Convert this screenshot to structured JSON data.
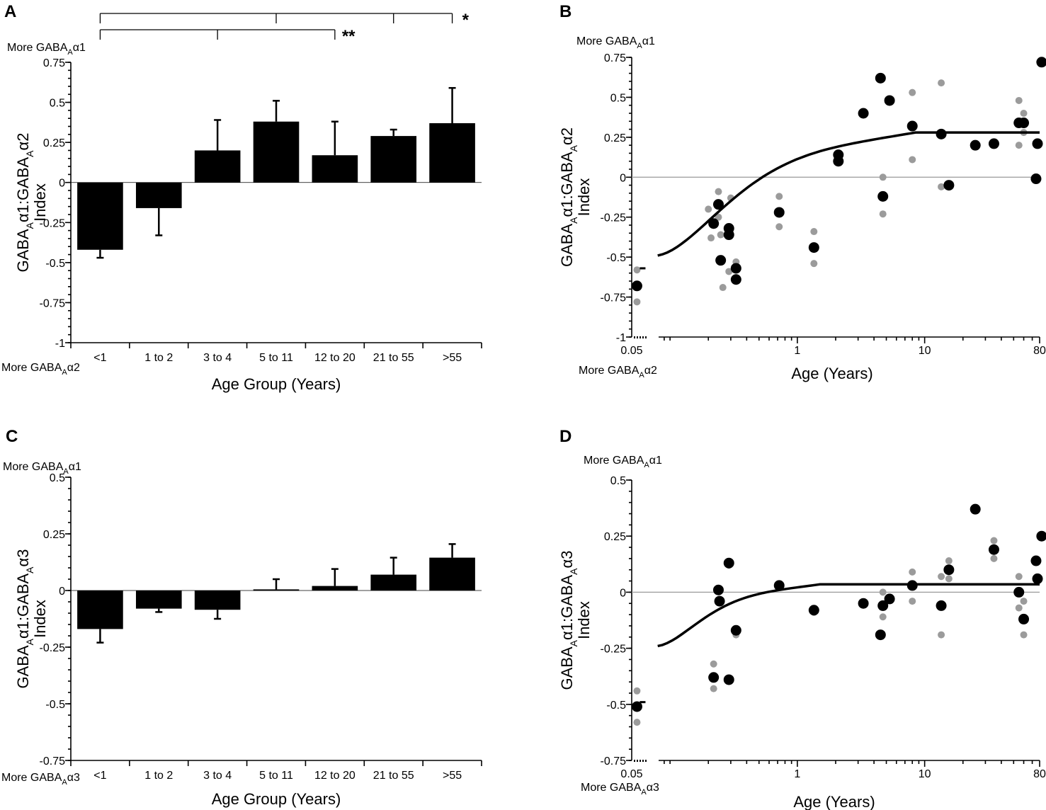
{
  "chart_data": [
    {
      "panel": "A",
      "type": "bar",
      "xlabel": "Age Group (Years)",
      "ylabel_parts": {
        "pre": "GABA",
        "sub1": "A",
        "mid": "α1:GABA",
        "sub2": "A",
        "post": "α2",
        "index": "Index"
      },
      "top_note": {
        "pre": "More GABA",
        "sub": "A",
        "post": "α1"
      },
      "bottom_note": {
        "pre": "More GABA",
        "sub": "A",
        "post": "α2"
      },
      "categories": [
        "<1",
        "1 to 2",
        "3 to 4",
        "5 to 11",
        "12 to 20",
        "21 to 55",
        ">55"
      ],
      "values": [
        -0.42,
        -0.16,
        0.2,
        0.38,
        0.17,
        0.29,
        0.37
      ],
      "errors": [
        0.05,
        0.17,
        0.19,
        0.13,
        0.21,
        0.04,
        0.22
      ],
      "ylim": [
        -1,
        0.75
      ],
      "yticks": [
        0.75,
        0.5,
        0.25,
        0,
        -0.25,
        -0.5,
        -0.75,
        -1
      ],
      "ytick_labels": [
        "0.75",
        "0.5",
        "0.25",
        "0",
        "-0.25",
        "-0.5",
        "-0.75",
        "-1"
      ],
      "significance": [
        {
          "label": "*",
          "from": 0,
          "to": 6,
          "ticks": [
            3,
            5
          ]
        },
        {
          "label": "**",
          "from": 0,
          "to": 4,
          "ticks": [
            2
          ]
        }
      ]
    },
    {
      "panel": "B",
      "type": "scatter",
      "xlabel": "Age (Years)",
      "ylabel_parts": {
        "pre": "GABA",
        "sub1": "A",
        "mid": "α1:GABA",
        "sub2": "A",
        "post": "α2",
        "index": "Index"
      },
      "top_note": {
        "pre": "More GABA",
        "sub": "A",
        "post": "α1"
      },
      "bottom_note": {
        "pre": "More GABA",
        "sub": "A",
        "post": "α2"
      },
      "xscale": "log",
      "xlim": [
        0.05,
        80
      ],
      "xtick_labels": [
        "0.05",
        "1",
        "10",
        "80"
      ],
      "xtick_values": [
        0.05,
        1,
        10,
        80
      ],
      "ylim": [
        -1,
        0.75
      ],
      "yticks": [
        0.75,
        0.5,
        0.25,
        0,
        -0.25,
        -0.5,
        -0.75,
        -1
      ],
      "ytick_labels": [
        "0.75",
        "0.5",
        "0.25",
        "0",
        "-0.25",
        "-0.5",
        "-0.75",
        "-1"
      ],
      "means": [
        [
          0.055,
          -0.68
        ],
        [
          0.22,
          -0.29
        ],
        [
          0.24,
          -0.17
        ],
        [
          0.25,
          -0.52
        ],
        [
          0.29,
          -0.32
        ],
        [
          0.29,
          -0.36
        ],
        [
          0.33,
          -0.57
        ],
        [
          0.33,
          -0.64
        ],
        [
          0.72,
          -0.22
        ],
        [
          1.35,
          -0.44
        ],
        [
          2.1,
          0.14
        ],
        [
          2.1,
          0.1
        ],
        [
          3.3,
          0.4
        ],
        [
          4.5,
          0.62
        ],
        [
          4.7,
          -0.12
        ],
        [
          5.3,
          0.48
        ],
        [
          8,
          0.32
        ],
        [
          13.5,
          0.27
        ],
        [
          15.5,
          -0.05
        ],
        [
          25,
          0.2
        ],
        [
          35,
          0.21
        ],
        [
          55,
          0.34
        ],
        [
          60,
          0.34
        ],
        [
          75,
          -0.01
        ],
        [
          77,
          0.21
        ],
        [
          83,
          0.72
        ]
      ],
      "replicates": [
        [
          0.055,
          -0.58
        ],
        [
          0.055,
          -0.78
        ],
        [
          0.2,
          -0.2
        ],
        [
          0.21,
          -0.38
        ],
        [
          0.24,
          -0.09
        ],
        [
          0.24,
          -0.25
        ],
        [
          0.25,
          -0.36
        ],
        [
          0.26,
          -0.69
        ],
        [
          0.29,
          -0.59
        ],
        [
          0.3,
          -0.13
        ],
        [
          0.33,
          -0.53
        ],
        [
          0.72,
          -0.12
        ],
        [
          0.72,
          -0.31
        ],
        [
          1.35,
          -0.34
        ],
        [
          1.35,
          -0.54
        ],
        [
          4.7,
          0.0
        ],
        [
          4.7,
          -0.23
        ],
        [
          8,
          0.53
        ],
        [
          8,
          0.11
        ],
        [
          13.5,
          0.59
        ],
        [
          13.5,
          -0.06
        ],
        [
          55,
          0.48
        ],
        [
          55,
          0.2
        ],
        [
          60,
          0.4
        ],
        [
          60,
          0.28
        ]
      ],
      "fit_curve": {
        "x_start": 0.08,
        "y_start": -0.49,
        "plateau": 0.28,
        "x_plateau": 8.5
      },
      "break_marker": {
        "x": 0.055,
        "y": -0.57
      }
    },
    {
      "panel": "C",
      "type": "bar",
      "xlabel": "Age Group (Years)",
      "ylabel_parts": {
        "pre": "GABA",
        "sub1": "A",
        "mid": "α1:GABA",
        "sub2": "A",
        "post": "α3",
        "index": "Index"
      },
      "top_note": {
        "pre": "More GABA",
        "sub": "A",
        "post": "α1"
      },
      "bottom_note": {
        "pre": "More GABA",
        "sub": "A",
        "post": "α3"
      },
      "categories": [
        "<1",
        "1 to 2",
        "3 to 4",
        "5 to 11",
        "12 to 20",
        "21 to 55",
        ">55"
      ],
      "values": [
        -0.17,
        -0.08,
        -0.085,
        0.005,
        0.02,
        0.07,
        0.145
      ],
      "errors": [
        0.06,
        0.015,
        0.04,
        0.045,
        0.075,
        0.075,
        0.06
      ],
      "ylim": [
        -0.75,
        0.5
      ],
      "yticks": [
        0.5,
        0.25,
        0,
        -0.25,
        -0.5,
        -0.75
      ],
      "ytick_labels": [
        "0.5",
        "0.25",
        "0",
        "-0.25",
        "-0.5",
        "-0.75"
      ]
    },
    {
      "panel": "D",
      "type": "scatter",
      "xlabel": "Age (Years)",
      "ylabel_parts": {
        "pre": "GABA",
        "sub1": "A",
        "mid": "α1:GABA",
        "sub2": "A",
        "post": "α3",
        "index": "Index"
      },
      "top_note": {
        "pre": "More GABA",
        "sub": "A",
        "post": "α1"
      },
      "bottom_note": {
        "pre": "More GABA",
        "sub": "A",
        "post": "α3"
      },
      "xscale": "log",
      "xlim": [
        0.05,
        80
      ],
      "xtick_labels": [
        "0.05",
        "1",
        "10",
        "80"
      ],
      "xtick_values": [
        0.05,
        1,
        10,
        80
      ],
      "ylim": [
        -0.75,
        0.5
      ],
      "yticks": [
        0.5,
        0.25,
        0,
        -0.25,
        -0.5,
        -0.75
      ],
      "ytick_labels": [
        "0.5",
        "0.25",
        "0",
        "-0.25",
        "-0.5",
        "-0.75"
      ],
      "means": [
        [
          0.055,
          -0.51
        ],
        [
          0.22,
          -0.38
        ],
        [
          0.24,
          0.01
        ],
        [
          0.245,
          -0.04
        ],
        [
          0.29,
          -0.39
        ],
        [
          0.29,
          0.13
        ],
        [
          0.33,
          -0.17
        ],
        [
          0.72,
          0.03
        ],
        [
          1.35,
          -0.08
        ],
        [
          3.3,
          -0.05
        ],
        [
          4.5,
          -0.19
        ],
        [
          4.7,
          -0.06
        ],
        [
          5.3,
          -0.03
        ],
        [
          8,
          0.03
        ],
        [
          13.5,
          -0.06
        ],
        [
          15.5,
          0.1
        ],
        [
          25,
          0.37
        ],
        [
          35,
          0.19
        ],
        [
          55,
          0.0
        ],
        [
          60,
          -0.12
        ],
        [
          75,
          0.14
        ],
        [
          77,
          0.06
        ],
        [
          83,
          0.25
        ]
      ],
      "replicates": [
        [
          0.055,
          -0.44
        ],
        [
          0.055,
          -0.58
        ],
        [
          0.22,
          -0.32
        ],
        [
          0.22,
          -0.43
        ],
        [
          0.29,
          0.12
        ],
        [
          0.33,
          -0.19
        ],
        [
          1.35,
          -0.09
        ],
        [
          4.7,
          0.0
        ],
        [
          4.7,
          -0.11
        ],
        [
          8,
          0.09
        ],
        [
          8,
          -0.04
        ],
        [
          13.5,
          0.07
        ],
        [
          13.5,
          -0.19
        ],
        [
          15.5,
          0.14
        ],
        [
          15.5,
          0.06
        ],
        [
          35,
          0.23
        ],
        [
          35,
          0.15
        ],
        [
          55,
          0.07
        ],
        [
          55,
          -0.07
        ],
        [
          60,
          -0.04
        ],
        [
          60,
          -0.19
        ]
      ],
      "fit_curve": {
        "x_start": 0.08,
        "y_start": -0.24,
        "plateau": 0.035,
        "x_plateau": 1.5
      },
      "break_marker": {
        "x": 0.055,
        "y": -0.49
      }
    }
  ]
}
